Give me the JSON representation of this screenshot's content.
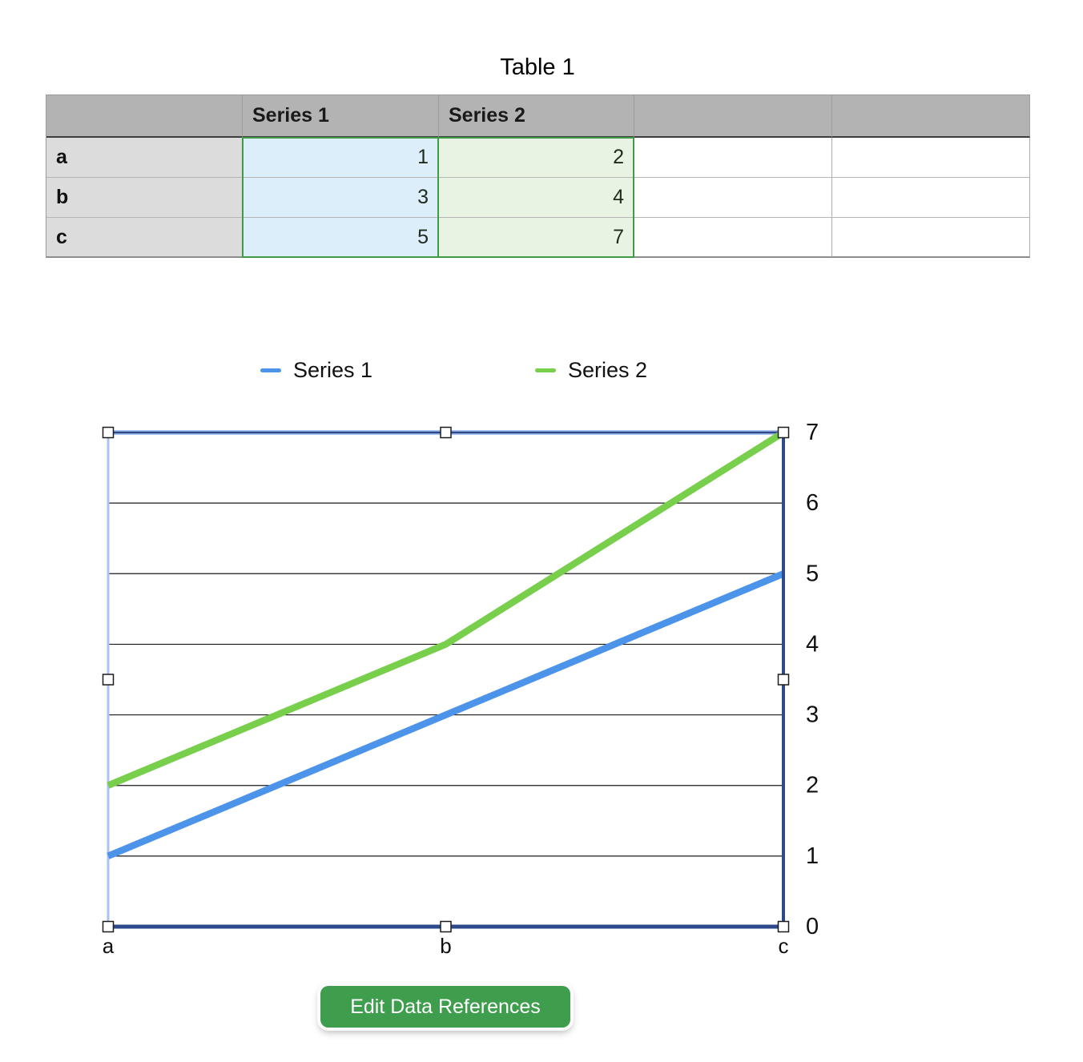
{
  "table": {
    "title": "Table 1",
    "columns": [
      "",
      "Series 1",
      "Series 2",
      "",
      ""
    ],
    "rows": [
      {
        "header": "a",
        "values": [
          "1",
          "2",
          "",
          ""
        ]
      },
      {
        "header": "b",
        "values": [
          "3",
          "4",
          "",
          ""
        ]
      },
      {
        "header": "c",
        "values": [
          "5",
          "7",
          "",
          ""
        ]
      }
    ]
  },
  "chart_data": {
    "type": "line",
    "categories": [
      "a",
      "b",
      "c"
    ],
    "series": [
      {
        "name": "Series 1",
        "values": [
          1,
          3,
          5
        ],
        "color": "#4b94ea"
      },
      {
        "name": "Series 2",
        "values": [
          2,
          4,
          7
        ],
        "color": "#78cf4c"
      }
    ],
    "title": "",
    "xlabel": "",
    "ylabel": "",
    "ylim": [
      0,
      7
    ],
    "yticks": [
      0,
      1,
      2,
      3,
      4,
      5,
      6,
      7
    ],
    "grid": true,
    "legend_position": "top",
    "selected": true
  },
  "button": {
    "label": "Edit Data References"
  },
  "colors": {
    "series1_blue": "#4b94ea",
    "series2_green": "#78cf4c",
    "axis_navy": "#2e4a8c",
    "selection_blue": "#a9c3f2",
    "gridline": "#1a1a1a",
    "button_green": "#3f9e4d",
    "table_header_bg": "#b3b3b3",
    "row_header_bg": "#dcdcdc",
    "series1_cell_bg": "#ddeefb",
    "series2_cell_bg": "#e8f3e3",
    "range_outline_green": "#3f9b44"
  }
}
